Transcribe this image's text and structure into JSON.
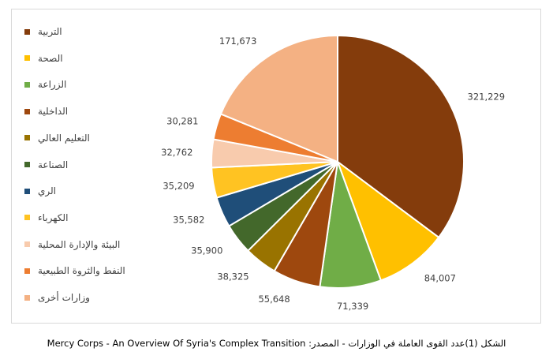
{
  "chart_data": {
    "type": "pie",
    "categories": [
      "التربية",
      "الصحة",
      "الزراعة",
      "الداخلية",
      "التعليم العالي",
      "الصناعة",
      "الري",
      "الكهرباء",
      "البيئة والإدارة المحلية",
      "النفط والثروة الطبيعية",
      "وزارات أخرى"
    ],
    "values": [
      321229,
      84007,
      71339,
      55648,
      38325,
      35900,
      35582,
      35209,
      32762,
      30281,
      171673
    ],
    "value_labels": [
      "321,229",
      "84,007",
      "71,339",
      "55,648",
      "38,325",
      "35,900",
      "35,582",
      "35,209",
      "32,762",
      "30,281",
      "171,673"
    ],
    "colors": [
      "#843C0C",
      "#FFC000",
      "#70AD47",
      "#9E480E",
      "#997300",
      "#43682B",
      "#1F4E79",
      "#FFC322",
      "#F8CBAD",
      "#ED7D31",
      "#F4B183"
    ],
    "start_angle_deg": 0,
    "direction": "clockwise",
    "legend_position": "left"
  },
  "caption": "الشكل (1)عدد القوى العاملة في الوزارات - المصدر: Mercy Corps - An Overview Of Syria's Complex Transition"
}
